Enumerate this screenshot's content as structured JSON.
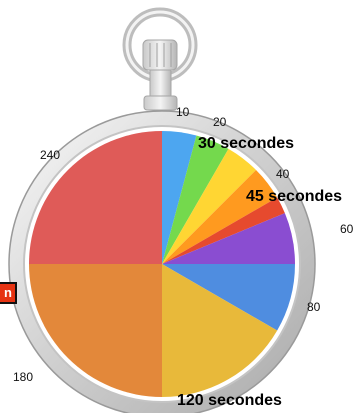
{
  "chart_data": {
    "type": "pie",
    "title": "",
    "unit_hint": "seconds",
    "slices": [
      {
        "start": 0,
        "end": 10,
        "color": "#4da6f0"
      },
      {
        "start": 10,
        "end": 20,
        "color": "#74d94d"
      },
      {
        "start": 20,
        "end": 30,
        "color": "#ffd633"
      },
      {
        "start": 30,
        "end": 40,
        "color": "#ff9a1f"
      },
      {
        "start": 40,
        "end": 45,
        "color": "#e64a2e"
      },
      {
        "start": 45,
        "end": 60,
        "color": "#8a4dd1"
      },
      {
        "start": 60,
        "end": 80,
        "color": "#4f8de0"
      },
      {
        "start": 80,
        "end": 120,
        "color": "#e8b93a"
      },
      {
        "start": 120,
        "end": 180,
        "color": "#e3883a"
      },
      {
        "start": 180,
        "end": 240,
        "color": "#df5b58"
      }
    ],
    "total": 240,
    "tick_labels": [
      "10",
      "20",
      "40",
      "60",
      "80",
      "180",
      "240"
    ],
    "callouts": [
      "30 secondes",
      "45 secondes",
      "120 secondes"
    ]
  },
  "side_button": {
    "label": "n",
    "color": "#e63312"
  }
}
